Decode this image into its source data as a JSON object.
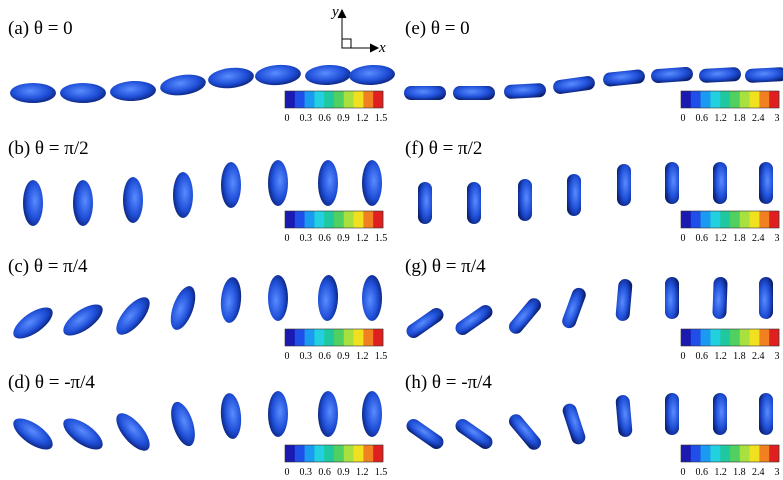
{
  "panels": [
    {
      "label": "(a) θ = 0",
      "colorbar_ticks": [
        0,
        0.3,
        0.6,
        0.9,
        1.2,
        1.5
      ]
    },
    {
      "label": "(b) θ = π/2",
      "colorbar_ticks": [
        0,
        0.3,
        0.6,
        0.9,
        1.2,
        1.5
      ]
    },
    {
      "label": "(c) θ = π/4",
      "colorbar_ticks": [
        0,
        0.3,
        0.6,
        0.9,
        1.2,
        1.5
      ]
    },
    {
      "label": "(d) θ = -π/4",
      "colorbar_ticks": [
        0,
        0.3,
        0.6,
        0.9,
        1.2,
        1.5
      ]
    },
    {
      "label": "(e) θ = 0",
      "colorbar_ticks": [
        0,
        0.6,
        1.2,
        1.8,
        2.4,
        3
      ]
    },
    {
      "label": "(f) θ = π/2",
      "colorbar_ticks": [
        0,
        0.6,
        1.2,
        1.8,
        2.4,
        3
      ]
    },
    {
      "label": "(g) θ = π/4",
      "colorbar_ticks": [
        0,
        0.6,
        1.2,
        1.8,
        2.4,
        3
      ]
    },
    {
      "label": "(h) θ = -π/4",
      "colorbar_ticks": [
        0,
        0.6,
        1.2,
        1.8,
        2.4,
        3
      ]
    }
  ],
  "axes": {
    "x": "x",
    "y": "y"
  }
}
